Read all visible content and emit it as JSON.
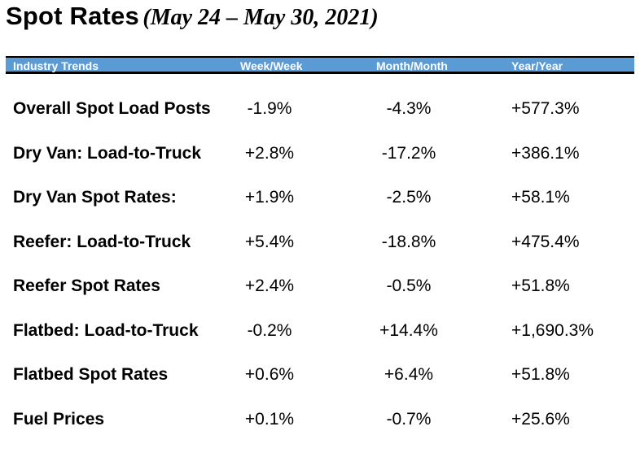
{
  "title": {
    "main": "Spot Rates",
    "dates": "(May 24 – May 30, 2021)"
  },
  "header": {
    "industry_trends": "Industry Trends",
    "week": "Week/Week",
    "month": "Month/Month",
    "year": "Year/Year"
  },
  "colors": {
    "header_bar": "#5b9bd5",
    "header_text": "#ffffff"
  },
  "rows": [
    {
      "label": "Overall Spot Load Posts",
      "week": "-1.9%",
      "month": "-4.3%",
      "year": "+577.3%"
    },
    {
      "label": "Dry Van: Load-to-Truck",
      "week": "+2.8%",
      "month": "-17.2%",
      "year": "+386.1%"
    },
    {
      "label": "Dry Van Spot Rates:",
      "week": "+1.9%",
      "month": "-2.5%",
      "year": "+58.1%"
    },
    {
      "label": "Reefer: Load-to-Truck",
      "week": "+5.4%",
      "month": "-18.8%",
      "year": "+475.4%"
    },
    {
      "label": "Reefer Spot Rates",
      "week": "+2.4%",
      "month": "-0.5%",
      "year": "+51.8%"
    },
    {
      "label": "Flatbed: Load-to-Truck",
      "week": "-0.2%",
      "month": "+14.4%",
      "year": "+1,690.3%"
    },
    {
      "label": "Flatbed Spot Rates",
      "week": "+0.6%",
      "month": "+6.4%",
      "year": "+51.8%"
    },
    {
      "label": "Fuel Prices",
      "week": "+0.1%",
      "month": "-0.7%",
      "year": "+25.6%"
    }
  ]
}
